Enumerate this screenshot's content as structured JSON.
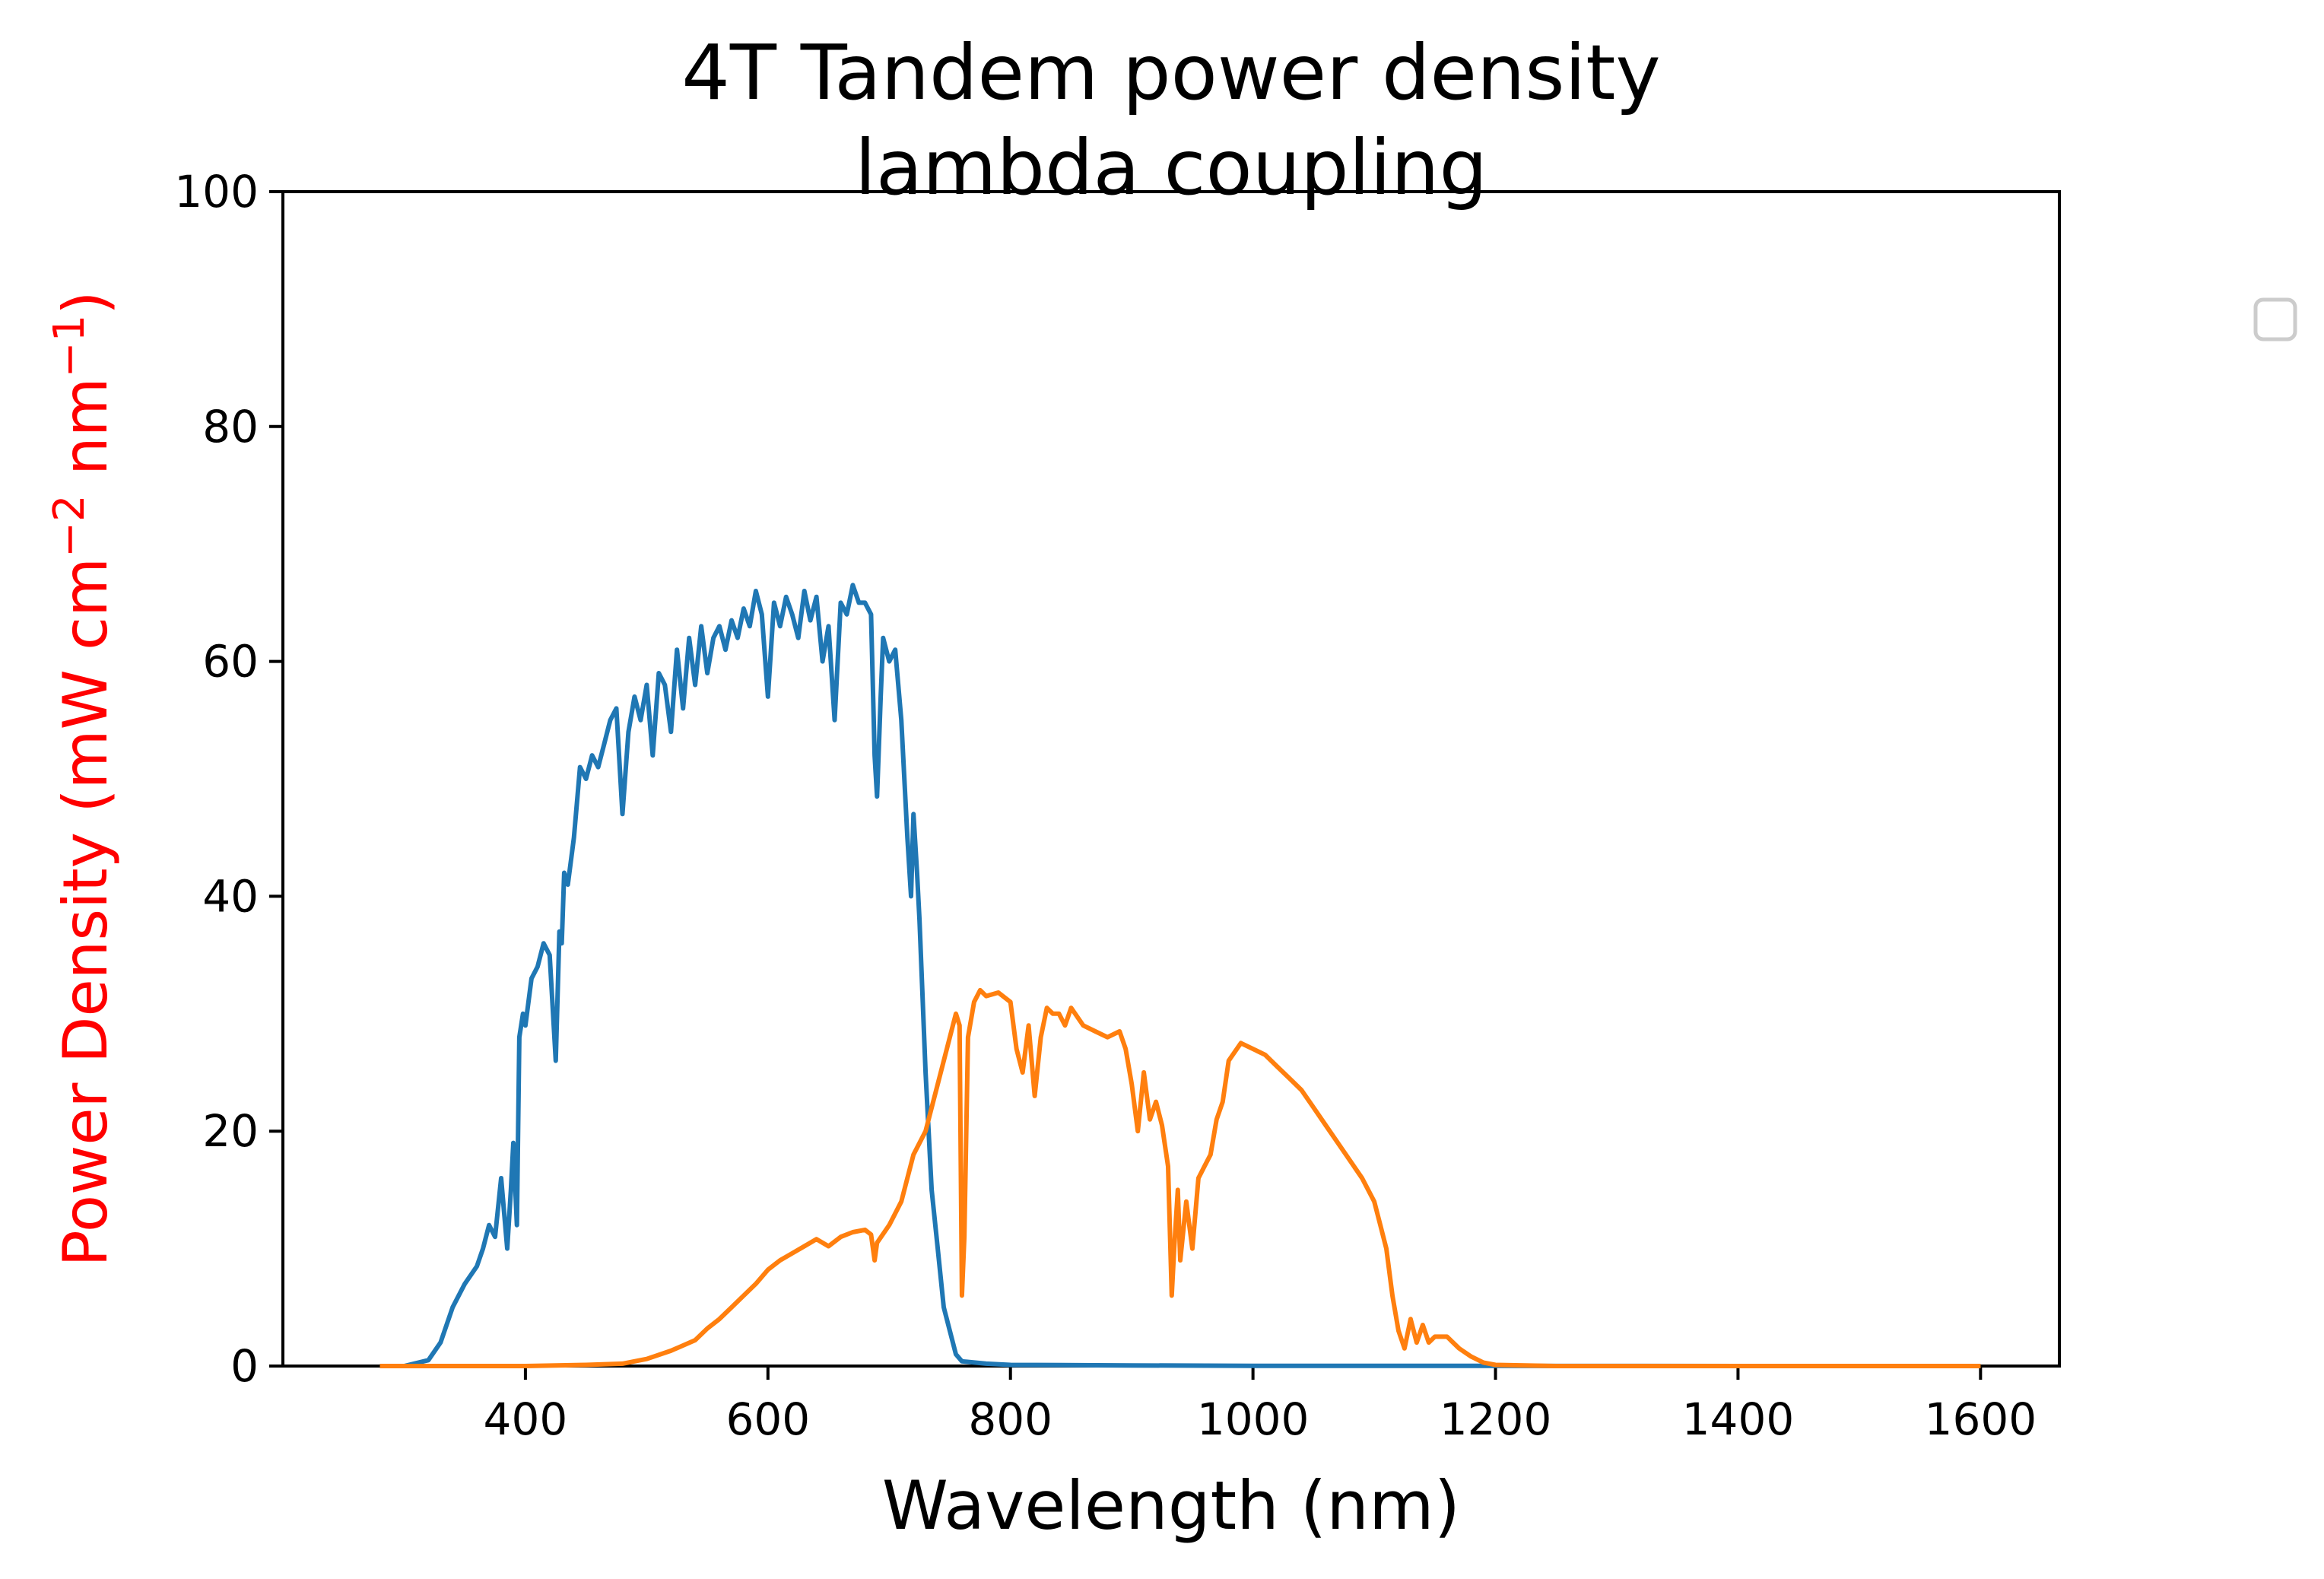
{
  "chart_data": {
    "type": "line",
    "title_lines": [
      "4T Tandem power density",
      "lambda coupling"
    ],
    "xlabel": "Wavelength (nm)",
    "ylabel": {
      "main": "Power Density (mW cm",
      "sup1": "−2",
      "mid": " nm",
      "sup2": "−1",
      "end": ")"
    },
    "ylabel_color": "#ff0000",
    "xlim": [
      200,
      1665
    ],
    "ylim": [
      0,
      100
    ],
    "xticks": [
      400,
      600,
      800,
      1000,
      1200,
      1400,
      1600
    ],
    "yticks": [
      0,
      20,
      40,
      60,
      80,
      100
    ],
    "xtick_labels": [
      "400",
      "600",
      "800",
      "1000",
      "1200",
      "1400",
      "1600"
    ],
    "ytick_labels": [
      "0",
      "20",
      "40",
      "60",
      "80",
      "100"
    ],
    "legend": {
      "placement": "outside-right",
      "entries": []
    },
    "series": [
      {
        "color": "#1f77b4",
        "x": [
          280,
          300,
          320,
          330,
          340,
          350,
          360,
          365,
          370,
          375,
          380,
          385,
          388,
          390,
          393,
          395,
          398,
          400,
          405,
          410,
          415,
          420,
          425,
          428,
          430,
          432,
          435,
          440,
          445,
          450,
          455,
          460,
          465,
          470,
          475,
          480,
          485,
          490,
          495,
          500,
          505,
          510,
          515,
          520,
          525,
          530,
          535,
          540,
          545,
          550,
          555,
          560,
          565,
          570,
          575,
          580,
          585,
          590,
          595,
          600,
          605,
          610,
          615,
          620,
          625,
          630,
          635,
          640,
          645,
          650,
          655,
          660,
          665,
          670,
          675,
          680,
          685,
          688,
          690,
          693,
          695,
          700,
          705,
          710,
          715,
          718,
          720,
          723,
          725,
          730,
          735,
          740,
          745,
          750,
          755,
          760,
          780,
          800,
          900,
          1000,
          1200,
          1400,
          1600
        ],
        "y": [
          0,
          0,
          0.5,
          2,
          5,
          7,
          8.5,
          10,
          12,
          11,
          16,
          10,
          15,
          19,
          12,
          28,
          30,
          29,
          33,
          34,
          36,
          35,
          26,
          37,
          36,
          42,
          41,
          45,
          51,
          50,
          52,
          51,
          53,
          55,
          56,
          47,
          54,
          57,
          55,
          58,
          52,
          59,
          58,
          54,
          61,
          56,
          62,
          58,
          63,
          59,
          62,
          63,
          61,
          63.5,
          62,
          64.5,
          63,
          66,
          64,
          57,
          65,
          63,
          65.5,
          64,
          62,
          66,
          63.5,
          65.5,
          60,
          63,
          55,
          65,
          64,
          66.5,
          65,
          65,
          64,
          52,
          48.5,
          57,
          62,
          60,
          61,
          55,
          45,
          40,
          47,
          42,
          38,
          25,
          15,
          10,
          5,
          3,
          1,
          0.4,
          0.2,
          0.1,
          0.05,
          0.02,
          0.01,
          0,
          0
        ],
        "color_note": ""
      },
      {
        "color": "#ff7f0e",
        "x": [
          280,
          350,
          400,
          450,
          480,
          500,
          520,
          540,
          550,
          560,
          570,
          580,
          590,
          600,
          610,
          620,
          630,
          640,
          650,
          660,
          670,
          680,
          685,
          688,
          690,
          700,
          710,
          720,
          730,
          740,
          750,
          755,
          758,
          760,
          762,
          765,
          770,
          775,
          780,
          790,
          800,
          805,
          810,
          815,
          820,
          825,
          830,
          835,
          840,
          845,
          850,
          860,
          870,
          880,
          890,
          895,
          900,
          905,
          910,
          915,
          920,
          925,
          930,
          933,
          935,
          938,
          940,
          945,
          950,
          955,
          960,
          965,
          970,
          975,
          980,
          990,
          1000,
          1010,
          1020,
          1030,
          1040,
          1050,
          1060,
          1070,
          1080,
          1090,
          1100,
          1105,
          1110,
          1115,
          1120,
          1125,
          1130,
          1135,
          1140,
          1145,
          1150,
          1160,
          1170,
          1180,
          1190,
          1200,
          1250,
          1300,
          1400,
          1500,
          1600
        ],
        "y": [
          0,
          0,
          0,
          0.1,
          0.2,
          0.6,
          1.3,
          2.2,
          3.2,
          4.0,
          5.0,
          6.0,
          7.0,
          8.2,
          9.0,
          9.6,
          10.2,
          10.8,
          10.2,
          11.0,
          11.4,
          11.6,
          11.2,
          9.0,
          10.5,
          12.0,
          14.0,
          18.0,
          20.0,
          24.0,
          28.0,
          30.0,
          29.0,
          6.0,
          11.0,
          28.0,
          31.0,
          32.0,
          31.5,
          31.8,
          31.0,
          27.0,
          25.0,
          29.0,
          23.0,
          28.0,
          30.5,
          30.0,
          30.0,
          29.0,
          30.5,
          29.0,
          28.5,
          28.0,
          28.5,
          27.0,
          24.0,
          20.0,
          25.0,
          21.0,
          22.5,
          20.5,
          17.0,
          6.0,
          10.0,
          15.0,
          9.0,
          14.0,
          10.0,
          16.0,
          17.0,
          18.0,
          21.0,
          22.5,
          26.0,
          27.5,
          27.0,
          26.5,
          25.5,
          24.5,
          23.5,
          22.0,
          20.5,
          19.0,
          17.5,
          16.0,
          14.0,
          12.0,
          10.0,
          6.0,
          3.0,
          1.5,
          4.0,
          2.0,
          3.5,
          2.0,
          2.5,
          2.5,
          1.5,
          0.8,
          0.3,
          0.1,
          0,
          0,
          0,
          0,
          0
        ]
      }
    ]
  }
}
